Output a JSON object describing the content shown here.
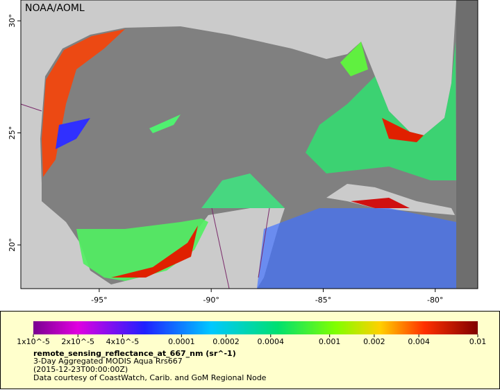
{
  "map": {
    "credit": "NOAA/AOML",
    "lonlim": [
      -98.5,
      -78.1
    ],
    "latlim": [
      18.05,
      30.93
    ],
    "lon_ticks": [
      {
        "value": -95,
        "label": "-95°"
      },
      {
        "value": -90,
        "label": "-90°"
      },
      {
        "value": -85,
        "label": "-85°"
      },
      {
        "value": -80,
        "label": "-80°"
      }
    ],
    "lat_ticks": [
      {
        "value": 20,
        "label": "20°"
      },
      {
        "value": 25,
        "label": "25°"
      },
      {
        "value": 30,
        "label": "30°"
      }
    ]
  },
  "legend": {
    "scale": "log",
    "colorbar_lim": [
      1e-05,
      0.01
    ],
    "colorbar_ticks": [
      {
        "value": 1e-05,
        "label": "1x10^-5"
      },
      {
        "value": 2e-05,
        "label": "2x10^-5"
      },
      {
        "value": 4e-05,
        "label": "4x10^-5"
      },
      0.0001,
      0.0002,
      0.0004,
      0.001,
      0.002,
      0.004,
      0.01
    ],
    "variable": "remote_sensing_reflectance_at_667_nm (sr^-1)",
    "lines": [
      "3-Day Aggregated MODIS Aqua Rrs667",
      "(2015-12-23T00:00:00Z)",
      "Data courtesy of CoastWatch, Carib. and GoM Regional Node"
    ]
  }
}
